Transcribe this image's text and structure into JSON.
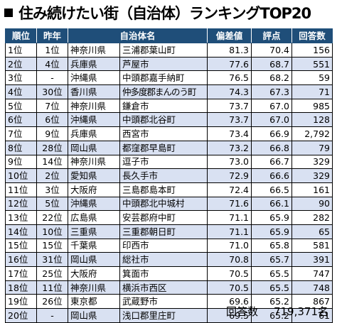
{
  "title": "住み続けたい街（自治体）ランキングTOP20",
  "headers": [
    "順位",
    "昨年",
    "自治体名",
    "",
    "偏差値",
    "評点",
    "回答数"
  ],
  "rows": [
    {
      "rank": "1位",
      "last": "1位",
      "pref": "神奈川県",
      "city": "三浦郡葉山町",
      "dev": "81.3",
      "score": "70.4",
      "count": "156"
    },
    {
      "rank": "2位",
      "last": "4位",
      "pref": "兵庫県",
      "city": "芦屋市",
      "dev": "77.6",
      "score": "68.7",
      "count": "551"
    },
    {
      "rank": "3位",
      "last": "-",
      "pref": "沖縄県",
      "city": "中頭郡嘉手納町",
      "dev": "76.5",
      "score": "68.2",
      "count": "59"
    },
    {
      "rank": "4位",
      "last": "30位",
      "pref": "香川県",
      "city": "仲多度郡まんのう町",
      "dev": "74.3",
      "score": "67.3",
      "count": "71"
    },
    {
      "rank": "5位",
      "last": "7位",
      "pref": "神奈川県",
      "city": "鎌倉市",
      "dev": "73.7",
      "score": "67.0",
      "count": "985"
    },
    {
      "rank": "6位",
      "last": "6位",
      "pref": "沖縄県",
      "city": "中頭郡北谷町",
      "dev": "73.7",
      "score": "67.0",
      "count": "128"
    },
    {
      "rank": "7位",
      "last": "9位",
      "pref": "兵庫県",
      "city": "西宮市",
      "dev": "73.4",
      "score": "66.9",
      "count": "2,792"
    },
    {
      "rank": "8位",
      "last": "28位",
      "pref": "岡山県",
      "city": "都窪郡早島町",
      "dev": "73.2",
      "score": "66.8",
      "count": "79"
    },
    {
      "rank": "9位",
      "last": "14位",
      "pref": "神奈川県",
      "city": "逗子市",
      "dev": "73.0",
      "score": "66.7",
      "count": "329"
    },
    {
      "rank": "10位",
      "last": "2位",
      "pref": "愛知県",
      "city": "長久手市",
      "dev": "72.9",
      "score": "66.6",
      "count": "329"
    },
    {
      "rank": "11位",
      "last": "3位",
      "pref": "大阪府",
      "city": "三島郡島本町",
      "dev": "72.4",
      "score": "66.5",
      "count": "161"
    },
    {
      "rank": "12位",
      "last": "5位",
      "pref": "沖縄県",
      "city": "中頭郡北中城村",
      "dev": "71.6",
      "score": "66.1",
      "count": "90"
    },
    {
      "rank": "13位",
      "last": "22位",
      "pref": "広島県",
      "city": "安芸郡府中町",
      "dev": "71.1",
      "score": "65.9",
      "count": "282"
    },
    {
      "rank": "14位",
      "last": "10位",
      "pref": "三重県",
      "city": "三重郡朝日町",
      "dev": "71.1",
      "score": "65.9",
      "count": "65"
    },
    {
      "rank": "15位",
      "last": "15位",
      "pref": "千葉県",
      "city": "印西市",
      "dev": "71.0",
      "score": "65.8",
      "count": "581"
    },
    {
      "rank": "16位",
      "last": "31位",
      "pref": "岡山県",
      "city": "総社市",
      "dev": "70.8",
      "score": "65.7",
      "count": "391"
    },
    {
      "rank": "17位",
      "last": "25位",
      "pref": "大阪府",
      "city": "箕面市",
      "dev": "70.5",
      "score": "65.5",
      "count": "747"
    },
    {
      "rank": "18位",
      "last": "11位",
      "pref": "神奈川県",
      "city": "横浜市西区",
      "dev": "70.5",
      "score": "65.5",
      "count": "748"
    },
    {
      "rank": "19位",
      "last": "26位",
      "pref": "東京都",
      "city": "武蔵野市",
      "dev": "69.6",
      "score": "65.2",
      "count": "867"
    },
    {
      "rank": "20位",
      "last": "-",
      "pref": "岡山県",
      "city": "浅口郡里庄町",
      "dev": "69.5",
      "score": "65.2",
      "count": "61"
    }
  ],
  "footer": {
    "label": "回答数",
    "value": "719,371名"
  }
}
